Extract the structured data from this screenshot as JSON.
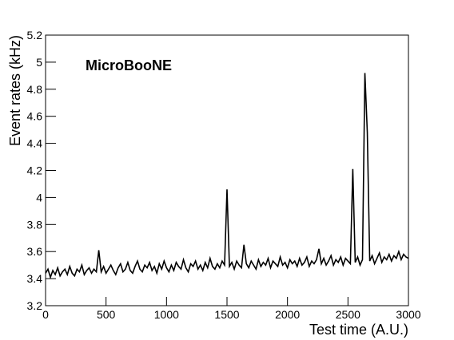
{
  "chart_data": {
    "type": "line",
    "annotation": "MicroBooNE",
    "x_label": "Test time (A.U.)",
    "y_label": "Event rates (kHz)",
    "x": [
      0,
      20,
      40,
      60,
      80,
      100,
      120,
      140,
      160,
      180,
      200,
      220,
      240,
      260,
      280,
      300,
      320,
      340,
      360,
      380,
      400,
      420,
      440,
      460,
      480,
      500,
      520,
      540,
      560,
      580,
      600,
      620,
      640,
      660,
      680,
      700,
      720,
      740,
      760,
      780,
      800,
      820,
      840,
      860,
      880,
      900,
      920,
      940,
      960,
      980,
      1000,
      1020,
      1040,
      1060,
      1080,
      1100,
      1120,
      1140,
      1160,
      1180,
      1200,
      1220,
      1240,
      1260,
      1280,
      1300,
      1320,
      1340,
      1360,
      1380,
      1400,
      1420,
      1440,
      1460,
      1480,
      1500,
      1520,
      1540,
      1560,
      1580,
      1600,
      1620,
      1640,
      1660,
      1680,
      1700,
      1720,
      1740,
      1760,
      1780,
      1800,
      1820,
      1840,
      1860,
      1880,
      1900,
      1920,
      1940,
      1960,
      1980,
      2000,
      2020,
      2040,
      2060,
      2080,
      2100,
      2120,
      2140,
      2160,
      2180,
      2200,
      2220,
      2240,
      2260,
      2280,
      2300,
      2320,
      2340,
      2360,
      2380,
      2400,
      2420,
      2440,
      2460,
      2480,
      2500,
      2520,
      2540,
      2560,
      2580,
      2600,
      2620,
      2640,
      2660,
      2680,
      2700,
      2720,
      2740,
      2760,
      2780,
      2800,
      2820,
      2840,
      2860,
      2880,
      2900,
      2920,
      2940,
      2960,
      2980,
      3000
    ],
    "series": [
      {
        "color": "#000000",
        "values": [
          3.44,
          3.47,
          3.41,
          3.46,
          3.43,
          3.48,
          3.42,
          3.45,
          3.47,
          3.43,
          3.49,
          3.44,
          3.42,
          3.47,
          3.45,
          3.5,
          3.43,
          3.46,
          3.48,
          3.44,
          3.47,
          3.45,
          3.61,
          3.45,
          3.49,
          3.44,
          3.47,
          3.5,
          3.46,
          3.43,
          3.48,
          3.51,
          3.45,
          3.47,
          3.52,
          3.46,
          3.44,
          3.49,
          3.53,
          3.47,
          3.45,
          3.5,
          3.48,
          3.52,
          3.46,
          3.49,
          3.44,
          3.51,
          3.47,
          3.53,
          3.48,
          3.45,
          3.5,
          3.46,
          3.52,
          3.49,
          3.47,
          3.54,
          3.48,
          3.45,
          3.51,
          3.49,
          3.53,
          3.47,
          3.5,
          3.46,
          3.52,
          3.48,
          3.55,
          3.49,
          3.47,
          3.51,
          3.48,
          3.53,
          3.5,
          4.06,
          3.49,
          3.52,
          3.47,
          3.53,
          3.5,
          3.48,
          3.65,
          3.51,
          3.48,
          3.53,
          3.5,
          3.47,
          3.54,
          3.49,
          3.52,
          3.5,
          3.55,
          3.48,
          3.53,
          3.51,
          3.49,
          3.56,
          3.5,
          3.52,
          3.48,
          3.54,
          3.51,
          3.53,
          3.49,
          3.55,
          3.5,
          3.52,
          3.56,
          3.49,
          3.53,
          3.51,
          3.54,
          3.62,
          3.51,
          3.55,
          3.5,
          3.53,
          3.57,
          3.5,
          3.54,
          3.52,
          3.56,
          3.5,
          3.55,
          3.53,
          3.51,
          4.21,
          3.52,
          3.56,
          3.5,
          3.54,
          4.92,
          4.48,
          3.53,
          3.57,
          3.51,
          3.55,
          3.59,
          3.52,
          3.56,
          3.54,
          3.58,
          3.53,
          3.57,
          3.55,
          3.6,
          3.54,
          3.58,
          3.56,
          3.55
        ]
      }
    ],
    "xlim": [
      0,
      3000
    ],
    "xticks": [
      0,
      500,
      1000,
      1500,
      2000,
      2500,
      3000
    ],
    "ylim": [
      3.2,
      5.2
    ],
    "yticks": [
      3.2,
      3.4,
      3.6,
      3.8,
      4,
      4.2,
      4.4,
      4.6,
      4.8,
      5,
      5.2
    ]
  }
}
